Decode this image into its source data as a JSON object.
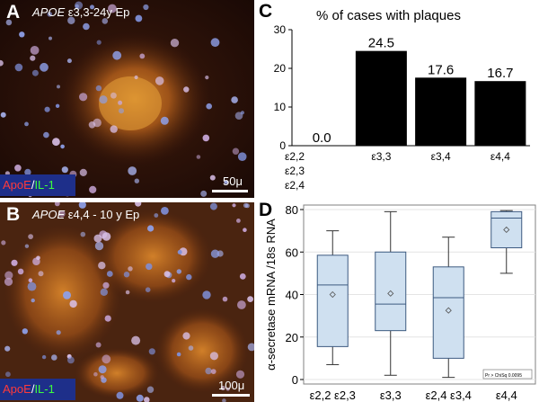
{
  "panel_a": {
    "label": "A",
    "title_gene": "APOE",
    "title_rest": " ε3,3-24y Ep",
    "stain_apoe": "ApoE",
    "stain_slash": "/",
    "stain_il": "IL-1",
    "scale": "50μ"
  },
  "panel_b": {
    "label": "B",
    "title_gene": "APOE",
    "title_rest": " ε4,4 - 10 y Ep",
    "stain_apoe": "ApoE",
    "stain_slash": "/",
    "stain_il": "IL-1",
    "scale": "100μ"
  },
  "panel_c_label": "C",
  "panel_d_label": "D",
  "chart_data": [
    {
      "type": "bar",
      "title": "% of cases with plaques",
      "categories": [
        [
          "ε2,2",
          "ε2,3",
          "ε2,4"
        ],
        [
          "ε3,3"
        ],
        [
          "ε3,4"
        ],
        [
          "ε4,4"
        ]
      ],
      "values": [
        0.0,
        24.5,
        17.6,
        16.7
      ],
      "value_labels": [
        "0.0",
        "24.5",
        "17.6",
        "16.7"
      ],
      "ylim": [
        0,
        30
      ],
      "yticks": [
        0,
        10,
        20,
        30
      ],
      "bar_color": "#000000",
      "grid": false
    },
    {
      "type": "box",
      "ylabel": "α-secretase  mRNA /18s RNA",
      "categories": [
        "ε2,2 ε2,3",
        "ε3,3",
        "ε2,4 ε3,4",
        "ε4,4"
      ],
      "ylim": [
        0,
        80
      ],
      "yticks": [
        0,
        20,
        40,
        60,
        80
      ],
      "boxes": [
        {
          "min": 7,
          "q1": 15.5,
          "median": 44.5,
          "q3": 58.5,
          "max": 70,
          "mean": 40
        },
        {
          "min": 2,
          "q1": 23,
          "median": 35.5,
          "q3": 60,
          "max": 79,
          "mean": 40.5
        },
        {
          "min": 1,
          "q1": 10,
          "median": 38.5,
          "q3": 53,
          "max": 67,
          "mean": 32.5
        },
        {
          "min": 50,
          "q1": 62,
          "median": 76,
          "q3": 79,
          "max": 79.5,
          "mean": 70.5
        }
      ],
      "box_fill": "#cfe0f0",
      "box_stroke": "#3d5a80",
      "grid": true,
      "annotation": "Pr > ChiSq  0.0095"
    }
  ]
}
